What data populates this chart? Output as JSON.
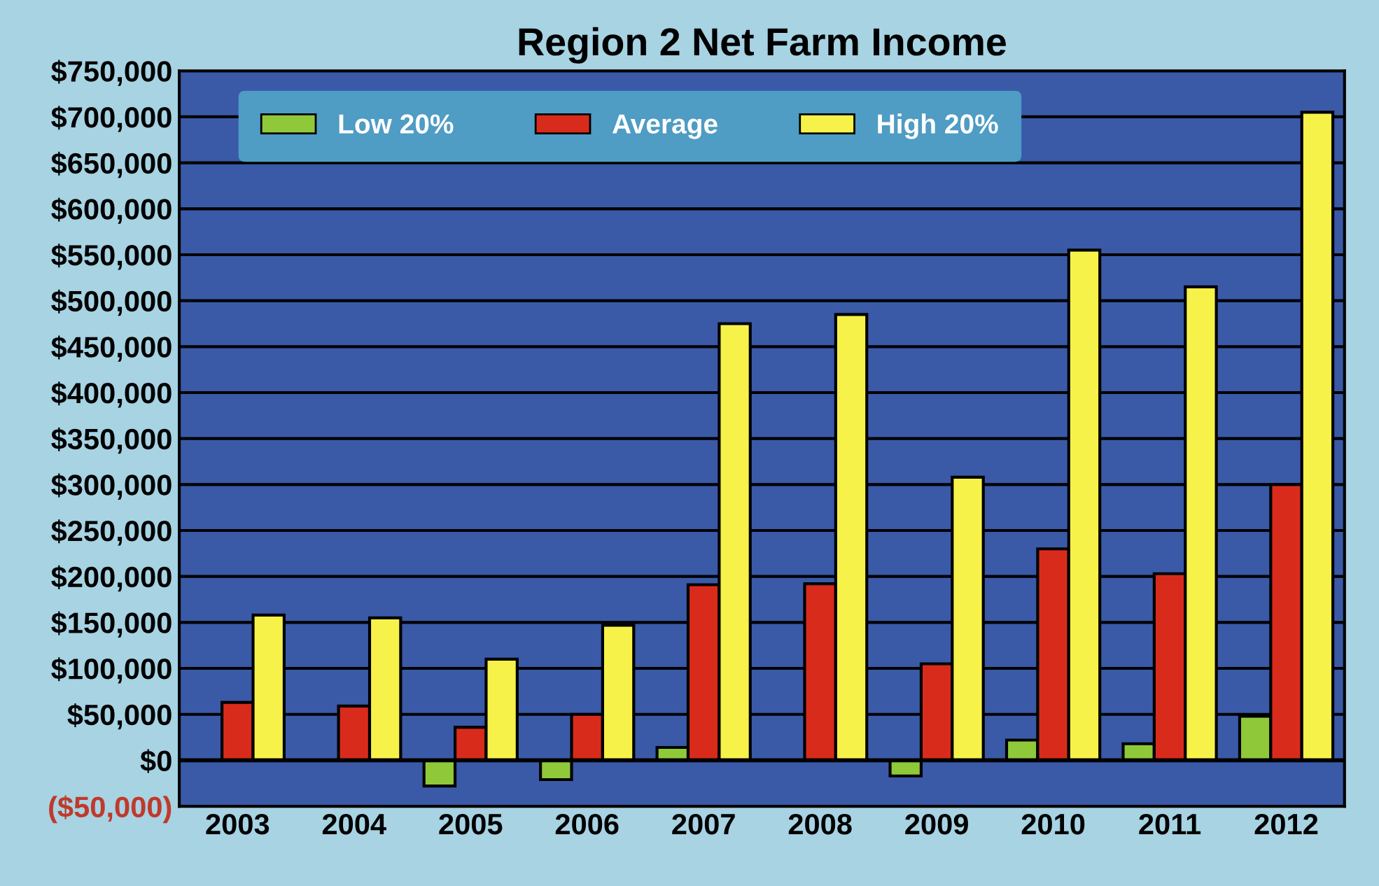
{
  "chart_data": {
    "type": "bar",
    "title": "Region 2 Net Farm Income",
    "categories": [
      "2003",
      "2004",
      "2005",
      "2006",
      "2007",
      "2008",
      "2009",
      "2010",
      "2011",
      "2012"
    ],
    "series": [
      {
        "name": "Low 20%",
        "color": "#8fc93a",
        "values": [
          null,
          null,
          -28000,
          -21000,
          14000,
          null,
          -17000,
          22000,
          18000,
          48000
        ]
      },
      {
        "name": "Average",
        "color": "#d92b1c",
        "values": [
          63000,
          59000,
          36000,
          50000,
          191000,
          192000,
          105000,
          230000,
          203000,
          300000
        ]
      },
      {
        "name": "High 20%",
        "color": "#f7f24a",
        "values": [
          158000,
          155000,
          110000,
          147000,
          475000,
          485000,
          308000,
          555000,
          515000,
          705000
        ]
      }
    ],
    "ylim": [
      -50000,
      750000
    ],
    "yticks": [
      {
        "value": -50000,
        "label": "($50,000)"
      },
      {
        "value": 0,
        "label": "$0"
      },
      {
        "value": 50000,
        "label": "$50,000"
      },
      {
        "value": 100000,
        "label": "$100,000"
      },
      {
        "value": 150000,
        "label": "$150,000"
      },
      {
        "value": 200000,
        "label": "$200,000"
      },
      {
        "value": 250000,
        "label": "$250,000"
      },
      {
        "value": 300000,
        "label": "$300,000"
      },
      {
        "value": 350000,
        "label": "$350,000"
      },
      {
        "value": 400000,
        "label": "$400,000"
      },
      {
        "value": 450000,
        "label": "$450,000"
      },
      {
        "value": 500000,
        "label": "$500,000"
      },
      {
        "value": 550000,
        "label": "$550,000"
      },
      {
        "value": 600000,
        "label": "$600,000"
      },
      {
        "value": 650000,
        "label": "$650,000"
      },
      {
        "value": 700000,
        "label": "$700,000"
      },
      {
        "value": 750000,
        "label": "$750,000"
      }
    ],
    "grid": "y",
    "legend": "top left"
  }
}
